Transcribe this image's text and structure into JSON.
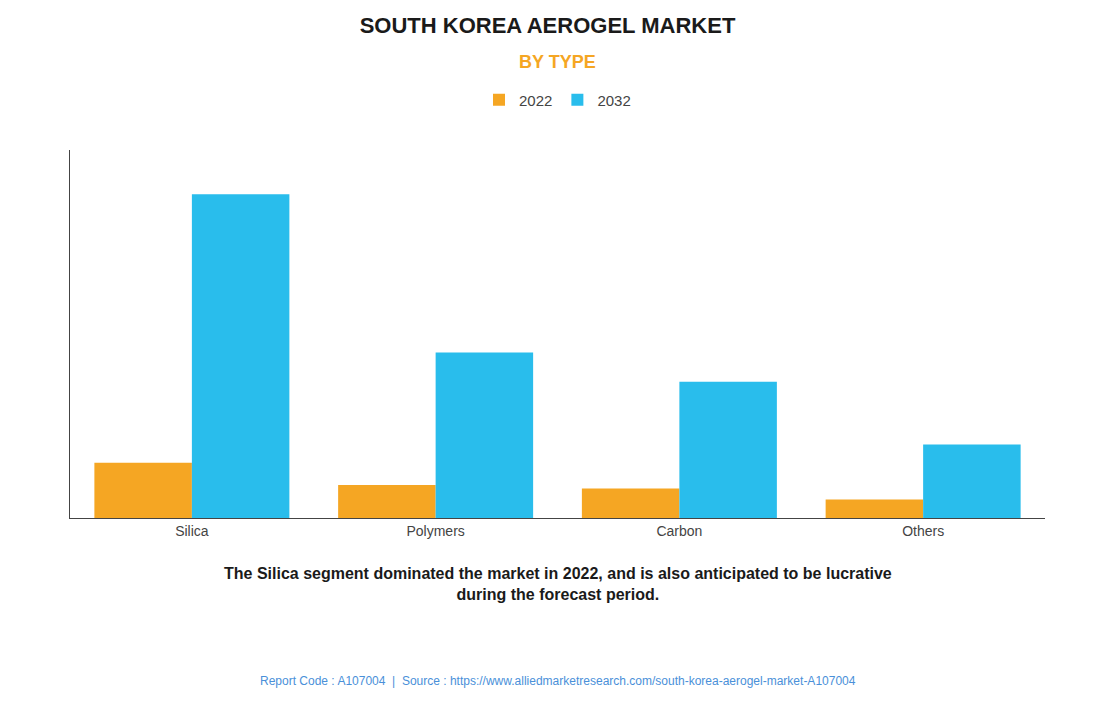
{
  "chart_data": {
    "type": "bar",
    "title": "SOUTH KOREA AEROGEL MARKET",
    "subtitle": "BY TYPE",
    "categories": [
      "Silica",
      "Polymers",
      "Carbon",
      "Others"
    ],
    "series": [
      {
        "name": "2022",
        "color": "#F5A623",
        "values": [
          15,
          9,
          8,
          5
        ]
      },
      {
        "name": "2032",
        "color": "#29BDEC",
        "values": [
          88,
          45,
          37,
          20
        ]
      }
    ],
    "ylim": [
      0,
      100
    ],
    "yticks": [],
    "grid": false,
    "tick_labels": "x",
    "legend": "top",
    "annotations": [
      "The Silica segment dominated the market in 2022, and is also anticipated to be lucrative\nduring the forecast period.",
      "Report Code : A107004  |  Source : https://www.alliedmarketresearch.com/south-korea-aerogel-market-A107004"
    ]
  }
}
